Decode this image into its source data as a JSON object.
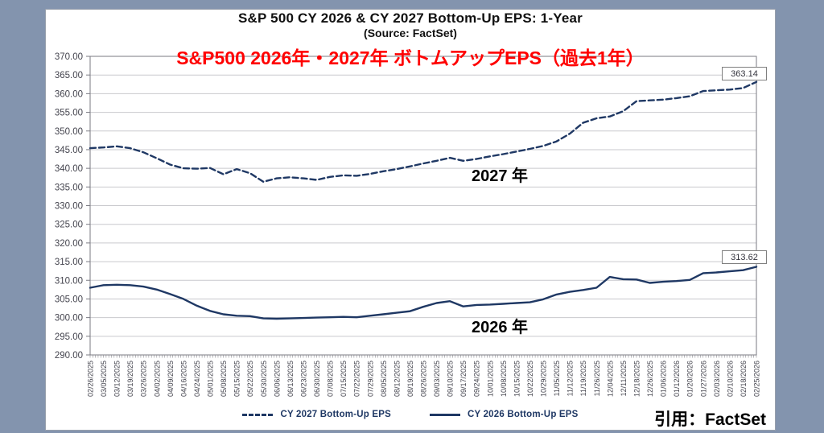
{
  "page": {
    "background_color": "#8394ae",
    "card_background": "#ffffff",
    "accent_red": "#ff0000",
    "line_navy": "#1f3864"
  },
  "header": {
    "title": "S&P 500 CY 2026 & CY 2027 Bottom-Up EPS: 1-Year",
    "subtitle": "(Source: FactSet)",
    "jp_headline": "S&P500 2026年・2027年 ボトムアップEPS（過去1年）"
  },
  "annotations": {
    "series_2027": "2027 年",
    "series_2026": "2026 年",
    "citation": "引用：FactSet"
  },
  "chart_data": {
    "type": "line",
    "title": "S&P 500 CY 2026 & CY 2027 Bottom-Up EPS: 1-Year",
    "subtitle": "(Source: FactSet)",
    "grid": true,
    "legend_position": "bottom",
    "ylim": [
      290,
      370
    ],
    "y_tick_step": 5,
    "y_ticks": [
      370,
      365,
      360,
      355,
      350,
      345,
      340,
      335,
      330,
      325,
      320,
      315,
      310,
      305,
      300,
      295,
      290
    ],
    "axis_color": "#7a7a82",
    "grid_color": "#c9c9cd",
    "tick_label_color": "#44444e",
    "x_labels": [
      "02/26/2025",
      "03/05/2025",
      "03/12/2025",
      "03/19/2025",
      "03/26/2025",
      "04/02/2025",
      "04/09/2025",
      "04/16/2025",
      "04/24/2025",
      "05/01/2025",
      "05/08/2025",
      "05/15/2025",
      "05/22/2025",
      "05/30/2025",
      "06/06/2025",
      "06/13/2025",
      "06/23/2025",
      "06/30/2025",
      "07/08/2025",
      "07/15/2025",
      "07/22/2025",
      "07/29/2025",
      "08/05/2025",
      "08/12/2025",
      "08/19/2025",
      "08/26/2025",
      "09/03/2025",
      "09/10/2025",
      "09/17/2025",
      "09/24/2025",
      "10/01/2025",
      "10/08/2025",
      "10/15/2025",
      "10/22/2025",
      "10/29/2025",
      "11/05/2025",
      "11/12/2025",
      "11/19/2025",
      "11/26/2025",
      "12/04/2025",
      "12/11/2025",
      "12/18/2025",
      "12/26/2025",
      "01/06/2026",
      "01/12/2026",
      "01/20/2026",
      "01/27/2026",
      "02/03/2026",
      "02/10/2026",
      "02/18/2026",
      "02/25/2026"
    ],
    "series": [
      {
        "name": "CY 2027 Bottom-Up EPS",
        "style": "dashed",
        "color": "#1f3864",
        "end_label": "363.14",
        "values": [
          345.4,
          345.6,
          345.9,
          345.4,
          344.3,
          342.7,
          341.0,
          340.0,
          339.9,
          340.1,
          338.4,
          339.8,
          338.7,
          336.4,
          337.3,
          337.6,
          337.3,
          336.9,
          337.7,
          338.1,
          338.0,
          338.5,
          339.2,
          339.8,
          340.5,
          341.3,
          342.0,
          342.8,
          342.0,
          342.5,
          343.2,
          343.8,
          344.5,
          345.2,
          346.0,
          347.2,
          349.3,
          352.2,
          353.4,
          353.9,
          355.3,
          358.0,
          358.2,
          358.4,
          358.8,
          359.3,
          360.7,
          360.9,
          361.1,
          361.5,
          363.14
        ]
      },
      {
        "name": "CY 2026 Bottom-Up EPS",
        "style": "solid",
        "color": "#1f3864",
        "end_label": "313.62",
        "values": [
          308.0,
          308.7,
          308.8,
          308.7,
          308.3,
          307.5,
          306.3,
          305.0,
          303.2,
          301.8,
          300.9,
          300.5,
          300.4,
          299.8,
          299.7,
          299.8,
          299.9,
          300.0,
          300.1,
          300.2,
          300.1,
          300.5,
          300.9,
          301.3,
          301.7,
          302.9,
          303.9,
          304.4,
          303.0,
          303.4,
          303.5,
          303.7,
          303.9,
          304.1,
          304.9,
          306.2,
          306.9,
          307.4,
          308.0,
          310.9,
          310.3,
          310.2,
          309.3,
          309.6,
          309.8,
          310.1,
          311.9,
          312.1,
          312.4,
          312.7,
          313.62
        ]
      }
    ]
  }
}
